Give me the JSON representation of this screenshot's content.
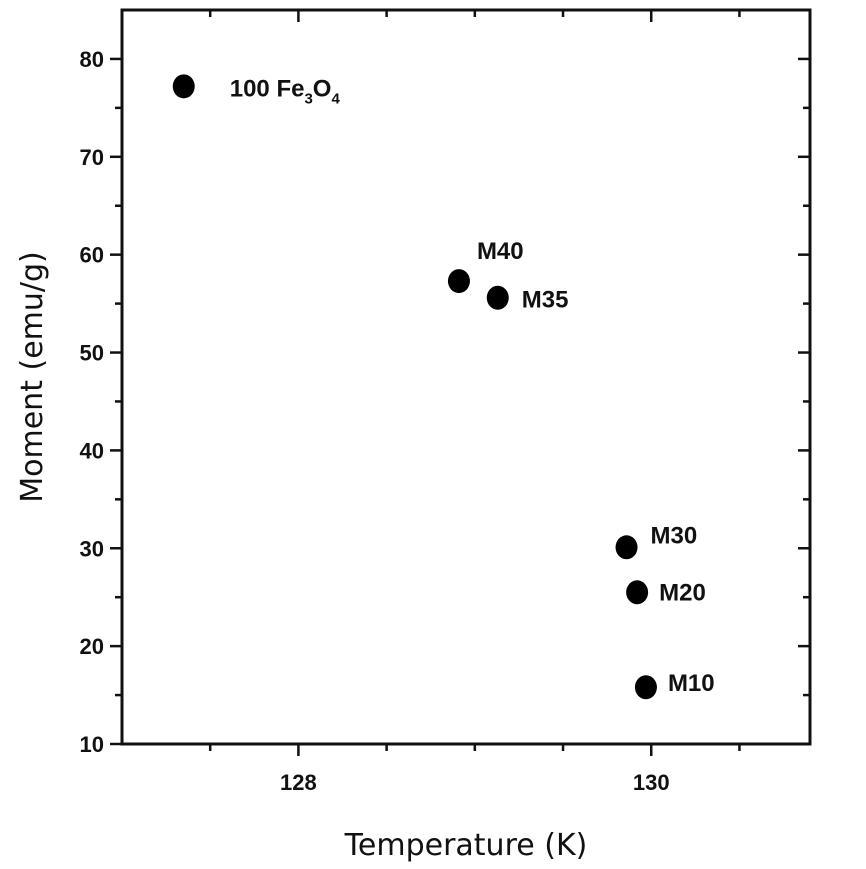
{
  "chart_data": {
    "type": "scatter",
    "xlabel": "Temperature (K)",
    "ylabel": "Moment (emu/g)",
    "xlim": [
      127,
      130.9
    ],
    "ylim": [
      10,
      85
    ],
    "xticks": [
      128,
      130
    ],
    "yticks": [
      10,
      20,
      30,
      40,
      50,
      60,
      70,
      80
    ],
    "grid": false,
    "points": [
      {
        "label": "100 Fe3O4",
        "label_base": "100 Fe",
        "label_sub1": "3",
        "label_mid": "O",
        "label_sub2": "4",
        "x": 127.35,
        "y": 77.2
      },
      {
        "label": "M40",
        "x": 128.91,
        "y": 57.3
      },
      {
        "label": "M35",
        "x": 129.13,
        "y": 55.6
      },
      {
        "label": "M30",
        "x": 129.86,
        "y": 30.1
      },
      {
        "label": "M20",
        "x": 129.92,
        "y": 25.5
      },
      {
        "label": "M10",
        "x": 129.97,
        "y": 15.8
      }
    ],
    "point_color": "#000000",
    "ylabel_color": "#1f3a5f"
  }
}
